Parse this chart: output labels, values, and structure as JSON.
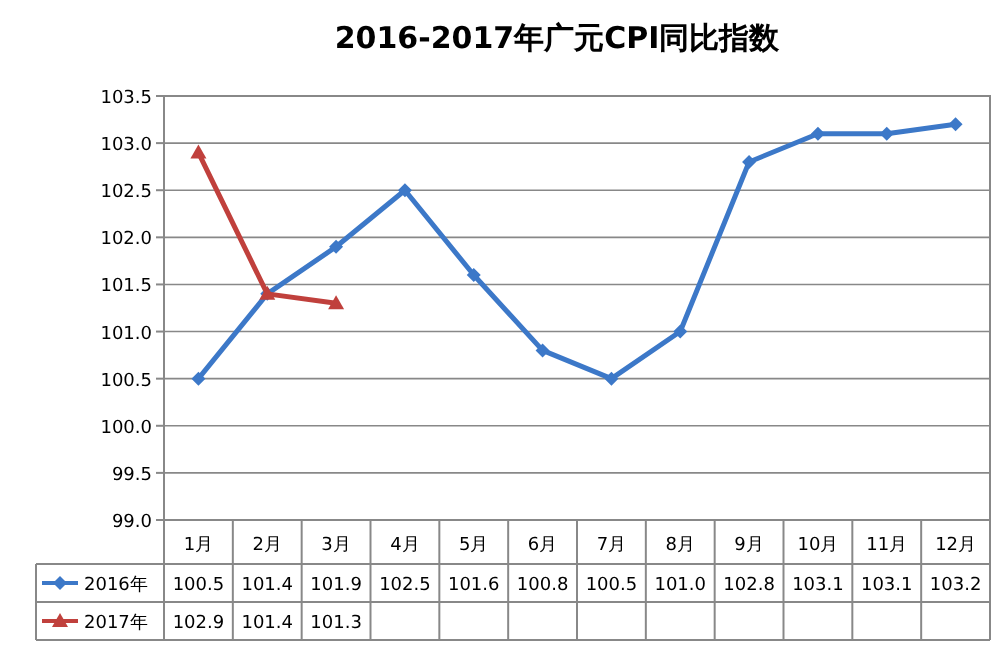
{
  "chart_data": {
    "type": "line",
    "title": "2016-2017年广元CPI同比指数",
    "categories": [
      "1月",
      "2月",
      "3月",
      "4月",
      "5月",
      "6月",
      "7月",
      "8月",
      "9月",
      "10月",
      "11月",
      "12月"
    ],
    "series": [
      {
        "name": "2016年",
        "color": "#3c78c8",
        "marker": "diamond",
        "values": [
          100.5,
          101.4,
          101.9,
          102.5,
          101.6,
          100.8,
          100.5,
          101.0,
          102.8,
          103.1,
          103.1,
          103.2
        ],
        "value_labels": [
          "100.5",
          "101.4",
          "101.9",
          "102.5",
          "101.6",
          "100.8",
          "100.5",
          "101.0",
          "102.8",
          "103.1",
          "103.1",
          "103.2"
        ]
      },
      {
        "name": "2017年",
        "color": "#c0403c",
        "marker": "triangle",
        "values": [
          102.9,
          101.4,
          101.3,
          null,
          null,
          null,
          null,
          null,
          null,
          null,
          null,
          null
        ],
        "value_labels": [
          "102.9",
          "101.4",
          "101.3",
          null,
          null,
          null,
          null,
          null,
          null,
          null,
          null,
          null
        ]
      }
    ],
    "ylim": [
      99,
      103.5
    ],
    "yticks": [
      {
        "value": 99,
        "label": "99.0"
      },
      {
        "value": 99.5,
        "label": "99.5"
      },
      {
        "value": 100,
        "label": "100.0"
      },
      {
        "value": 100.5,
        "label": "100.5"
      },
      {
        "value": 101,
        "label": "101.0"
      },
      {
        "value": 101.5,
        "label": "101.5"
      },
      {
        "value": 102,
        "label": "102.0"
      },
      {
        "value": 102.5,
        "label": "102.5"
      },
      {
        "value": 103,
        "label": "103.0"
      },
      {
        "value": 103.5,
        "label": "103.5"
      }
    ],
    "grid": "y",
    "legend": "bottom left"
  }
}
